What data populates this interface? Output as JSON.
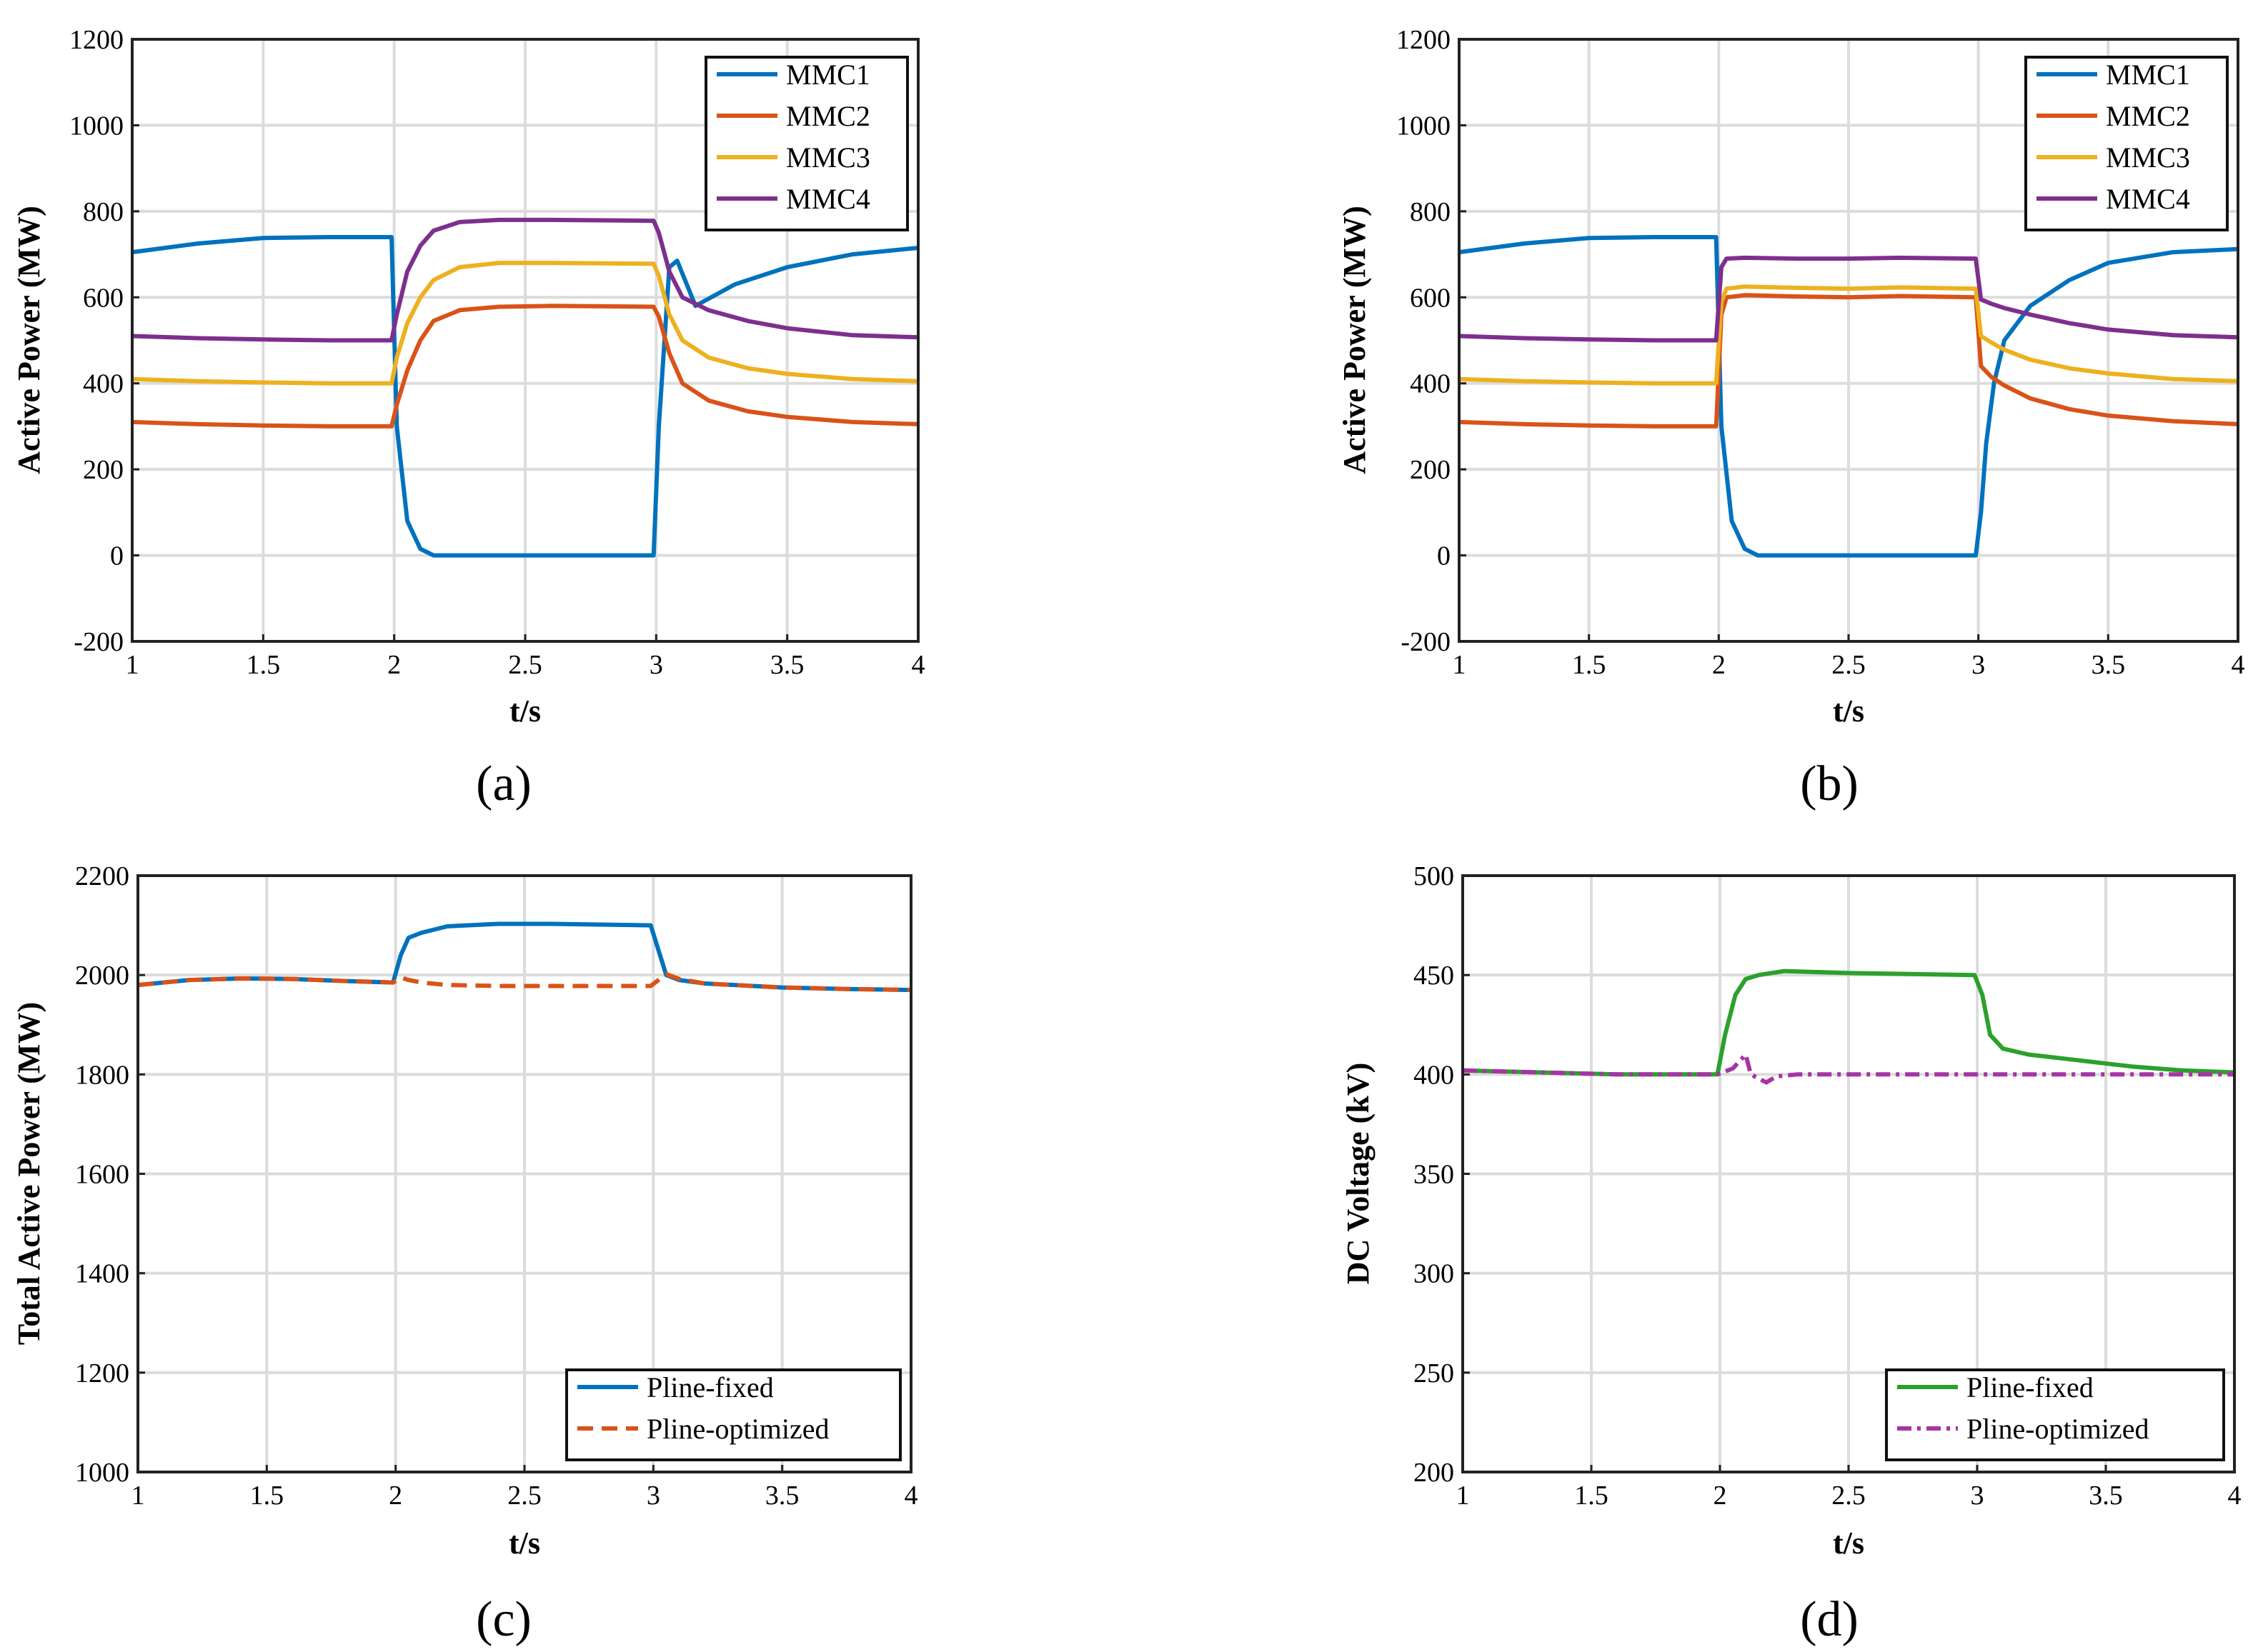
{
  "panels": [
    {
      "label": "(a)",
      "chart_data": {
        "type": "line",
        "xlabel": "t/s",
        "ylabel": "Active Power (MW)",
        "xlim": [
          1,
          4
        ],
        "ylim": [
          -200,
          1200
        ],
        "xticks": [
          1,
          1.5,
          2,
          2.5,
          3,
          3.5,
          4
        ],
        "yticks": [
          -200,
          0,
          200,
          400,
          600,
          800,
          1000,
          1200
        ],
        "grid": true,
        "legend_position": "top-right",
        "series": [
          {
            "name": "MMC1",
            "color": "#0072BD",
            "style": "solid",
            "x": [
              1,
              1.25,
              1.5,
              1.75,
              1.99,
              2.01,
              2.05,
              2.1,
              2.15,
              2.3,
              2.6,
              2.99,
              3.01,
              3.05,
              3.08,
              3.15,
              3.3,
              3.5,
              3.75,
              4
            ],
            "y": [
              705,
              725,
              738,
              740,
              740,
              300,
              80,
              15,
              0,
              0,
              0,
              0,
              300,
              670,
              685,
              580,
              630,
              670,
              700,
              715
            ]
          },
          {
            "name": "MMC2",
            "color": "#D95319",
            "style": "solid",
            "x": [
              1,
              1.25,
              1.5,
              1.75,
              1.99,
              2.01,
              2.05,
              2.1,
              2.15,
              2.25,
              2.4,
              2.6,
              2.99,
              3.01,
              3.05,
              3.1,
              3.2,
              3.35,
              3.5,
              3.75,
              4
            ],
            "y": [
              310,
              305,
              302,
              300,
              300,
              350,
              430,
              500,
              545,
              570,
              578,
              580,
              578,
              555,
              470,
              400,
              360,
              335,
              322,
              310,
              305
            ]
          },
          {
            "name": "MMC3",
            "color": "#EDB120",
            "style": "solid",
            "x": [
              1,
              1.25,
              1.5,
              1.75,
              1.99,
              2.01,
              2.05,
              2.1,
              2.15,
              2.25,
              2.4,
              2.6,
              2.99,
              3.01,
              3.05,
              3.1,
              3.2,
              3.35,
              3.5,
              3.75,
              4
            ],
            "y": [
              410,
              405,
              402,
              400,
              400,
              460,
              540,
              600,
              640,
              670,
              680,
              680,
              678,
              650,
              560,
              500,
              460,
              435,
              422,
              410,
              405
            ]
          },
          {
            "name": "MMC4",
            "color": "#7E2F8E",
            "style": "solid",
            "x": [
              1,
              1.25,
              1.5,
              1.75,
              1.99,
              2.01,
              2.05,
              2.1,
              2.15,
              2.25,
              2.4,
              2.6,
              2.99,
              3.01,
              3.05,
              3.1,
              3.2,
              3.35,
              3.5,
              3.75,
              4
            ],
            "y": [
              510,
              505,
              502,
              500,
              500,
              560,
              660,
              720,
              755,
              775,
              780,
              780,
              778,
              750,
              660,
              600,
              570,
              545,
              528,
              512,
              507
            ]
          }
        ]
      }
    },
    {
      "label": "(b)",
      "chart_data": {
        "type": "line",
        "xlabel": "t/s",
        "ylabel": "Active Power (MW)",
        "xlim": [
          1,
          4
        ],
        "ylim": [
          -200,
          1200
        ],
        "xticks": [
          1,
          1.5,
          2,
          2.5,
          3,
          3.5,
          4
        ],
        "yticks": [
          -200,
          0,
          200,
          400,
          600,
          800,
          1000,
          1200
        ],
        "grid": true,
        "legend_position": "top-right",
        "series": [
          {
            "name": "MMC1",
            "color": "#0072BD",
            "style": "solid",
            "x": [
              1,
              1.25,
              1.5,
              1.75,
              1.99,
              2.01,
              2.05,
              2.1,
              2.15,
              2.3,
              2.6,
              2.99,
              3.01,
              3.03,
              3.06,
              3.1,
              3.2,
              3.35,
              3.5,
              3.75,
              4
            ],
            "y": [
              705,
              725,
              738,
              740,
              740,
              300,
              80,
              15,
              0,
              0,
              0,
              0,
              100,
              260,
              400,
              500,
              580,
              640,
              680,
              705,
              712
            ]
          },
          {
            "name": "MMC2",
            "color": "#D95319",
            "style": "solid",
            "x": [
              1,
              1.25,
              1.5,
              1.75,
              1.99,
              2.01,
              2.03,
              2.1,
              2.3,
              2.5,
              2.7,
              2.99,
              3.01,
              3.05,
              3.1,
              3.2,
              3.35,
              3.5,
              3.75,
              4
            ],
            "y": [
              310,
              305,
              302,
              300,
              300,
              560,
              600,
              605,
              602,
              600,
              603,
              600,
              440,
              415,
              395,
              365,
              340,
              325,
              312,
              305
            ]
          },
          {
            "name": "MMC3",
            "color": "#EDB120",
            "style": "solid",
            "x": [
              1,
              1.25,
              1.5,
              1.75,
              1.99,
              2.01,
              2.03,
              2.1,
              2.3,
              2.5,
              2.7,
              2.99,
              3.01,
              3.05,
              3.1,
              3.2,
              3.35,
              3.5,
              3.75,
              4
            ],
            "y": [
              410,
              405,
              402,
              400,
              400,
              590,
              620,
              625,
              622,
              620,
              623,
              620,
              510,
              495,
              478,
              455,
              435,
              423,
              410,
              405
            ]
          },
          {
            "name": "MMC4",
            "color": "#7E2F8E",
            "style": "solid",
            "x": [
              1,
              1.25,
              1.5,
              1.75,
              1.99,
              2.01,
              2.03,
              2.1,
              2.3,
              2.5,
              2.7,
              2.99,
              3.01,
              3.05,
              3.1,
              3.2,
              3.35,
              3.5,
              3.75,
              4
            ],
            "y": [
              510,
              505,
              502,
              500,
              500,
              670,
              690,
              692,
              690,
              690,
              692,
              690,
              595,
              585,
              575,
              560,
              540,
              525,
              512,
              507
            ]
          }
        ]
      }
    },
    {
      "label": "(c)",
      "chart_data": {
        "type": "line",
        "xlabel": "t/s",
        "ylabel": "Total Active Power (MW)",
        "xlim": [
          1,
          4
        ],
        "ylim": [
          1000,
          2200
        ],
        "xticks": [
          1,
          1.5,
          2,
          2.5,
          3,
          3.5,
          4
        ],
        "yticks": [
          1000,
          1200,
          1400,
          1600,
          1800,
          2000,
          2200
        ],
        "grid": true,
        "legend_position": "bottom-right",
        "series": [
          {
            "name": "Pline-fixed",
            "color": "#0072BD",
            "style": "solid",
            "x": [
              1,
              1.2,
              1.4,
              1.6,
              1.8,
              1.99,
              2.02,
              2.05,
              2.1,
              2.2,
              2.4,
              2.6,
              2.99,
              3.02,
              3.05,
              3.1,
              3.2,
              3.5,
              3.75,
              4
            ],
            "y": [
              1980,
              1990,
              1993,
              1992,
              1988,
              1985,
              2040,
              2075,
              2085,
              2098,
              2103,
              2103,
              2100,
              2050,
              2000,
              1990,
              1983,
              1975,
              1972,
              1970
            ]
          },
          {
            "name": "Pline-optimized",
            "color": "#D95319",
            "style": "dashed",
            "x": [
              1,
              1.2,
              1.4,
              1.6,
              1.8,
              1.99,
              2.02,
              2.05,
              2.1,
              2.2,
              2.4,
              2.6,
              2.99,
              3.02,
              3.05,
              3.1,
              3.2,
              3.5,
              3.75,
              4
            ],
            "y": [
              1980,
              1990,
              1993,
              1992,
              1988,
              1985,
              1995,
              1990,
              1985,
              1980,
              1978,
              1978,
              1978,
              1990,
              2002,
              1992,
              1983,
              1975,
              1972,
              1970
            ]
          }
        ]
      }
    },
    {
      "label": "(d)",
      "chart_data": {
        "type": "line",
        "xlabel": "t/s",
        "ylabel": "DC Voltage (kV)",
        "xlim": [
          1,
          4
        ],
        "ylim": [
          200,
          500
        ],
        "xticks": [
          1,
          1.5,
          2,
          2.5,
          3,
          3.5,
          4
        ],
        "yticks": [
          200,
          250,
          300,
          350,
          400,
          450,
          500
        ],
        "grid": true,
        "legend_position": "bottom-right",
        "series": [
          {
            "name": "Pline-fixed",
            "color": "#2CA02C",
            "style": "solid",
            "x": [
              1,
              1.3,
              1.6,
              1.99,
              2.02,
              2.06,
              2.1,
              2.15,
              2.25,
              2.5,
              2.99,
              3.02,
              3.05,
              3.1,
              3.2,
              3.4,
              3.6,
              3.8,
              4
            ],
            "y": [
              402,
              401,
              400,
              400,
              420,
              440,
              448,
              450,
              452,
              451,
              450,
              440,
              420,
              413,
              410,
              407,
              404,
              402,
              401
            ]
          },
          {
            "name": "Pline-optimized",
            "color": "#A634A6",
            "style": "dashdot",
            "x": [
              1,
              1.3,
              1.6,
              1.99,
              2.05,
              2.1,
              2.12,
              2.15,
              2.18,
              2.22,
              2.3,
              2.5,
              2.8,
              3.0,
              3.3,
              3.6,
              4
            ],
            "y": [
              402,
              401,
              400,
              400,
              403,
              410,
              400,
              398,
              396,
              399,
              400,
              400,
              400,
              400,
              400,
              400,
              400
            ]
          }
        ]
      }
    }
  ]
}
